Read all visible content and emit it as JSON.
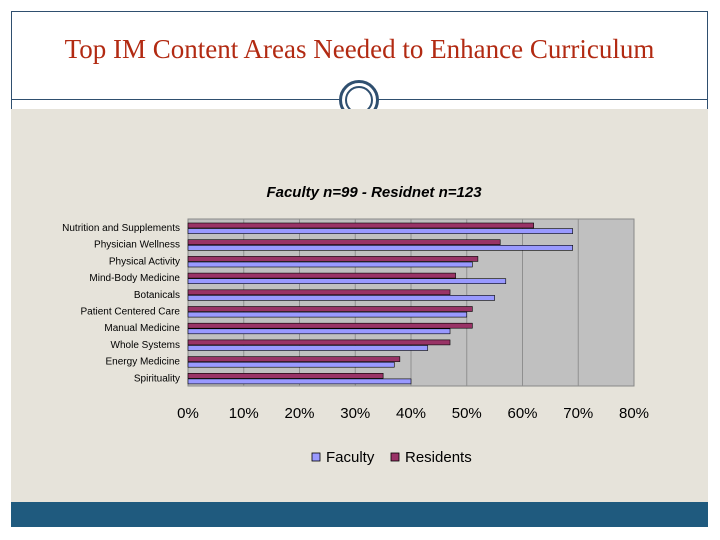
{
  "slide": {
    "title": "Top IM Content Areas Needed to Enhance Curriculum",
    "accent_color": "#b22a12",
    "frame_color": "#2f4f6f",
    "footer_color": "#1f5a7e",
    "panel_color": "#e6e3da"
  },
  "chart_data": {
    "type": "bar",
    "orientation": "horizontal",
    "title": "Faculty n=99 - Residnet n=123",
    "categories": [
      "Nutrition and Supplements",
      "Physician Wellness",
      "Physical Activity",
      "Mind-Body Medicine",
      "Botanicals",
      "Patient Centered Care",
      "Manual Medicine",
      "Whole Systems",
      "Energy Medicine",
      "Spirituality"
    ],
    "series": [
      {
        "name": "Faculty",
        "color": "#9999ff",
        "values": [
          69,
          69,
          51,
          57,
          55,
          50,
          47,
          43,
          37,
          40
        ]
      },
      {
        "name": "Residents",
        "color": "#993366",
        "values": [
          62,
          56,
          52,
          48,
          47,
          51,
          51,
          47,
          38,
          35
        ]
      }
    ],
    "xlim": [
      0,
      80
    ],
    "ticks": [
      "0%",
      "10%",
      "20%",
      "30%",
      "40%",
      "50%",
      "60%",
      "70%",
      "80%"
    ],
    "grid": "vertical",
    "plot_background": "#c0c0c0",
    "legend_position": "bottom"
  }
}
